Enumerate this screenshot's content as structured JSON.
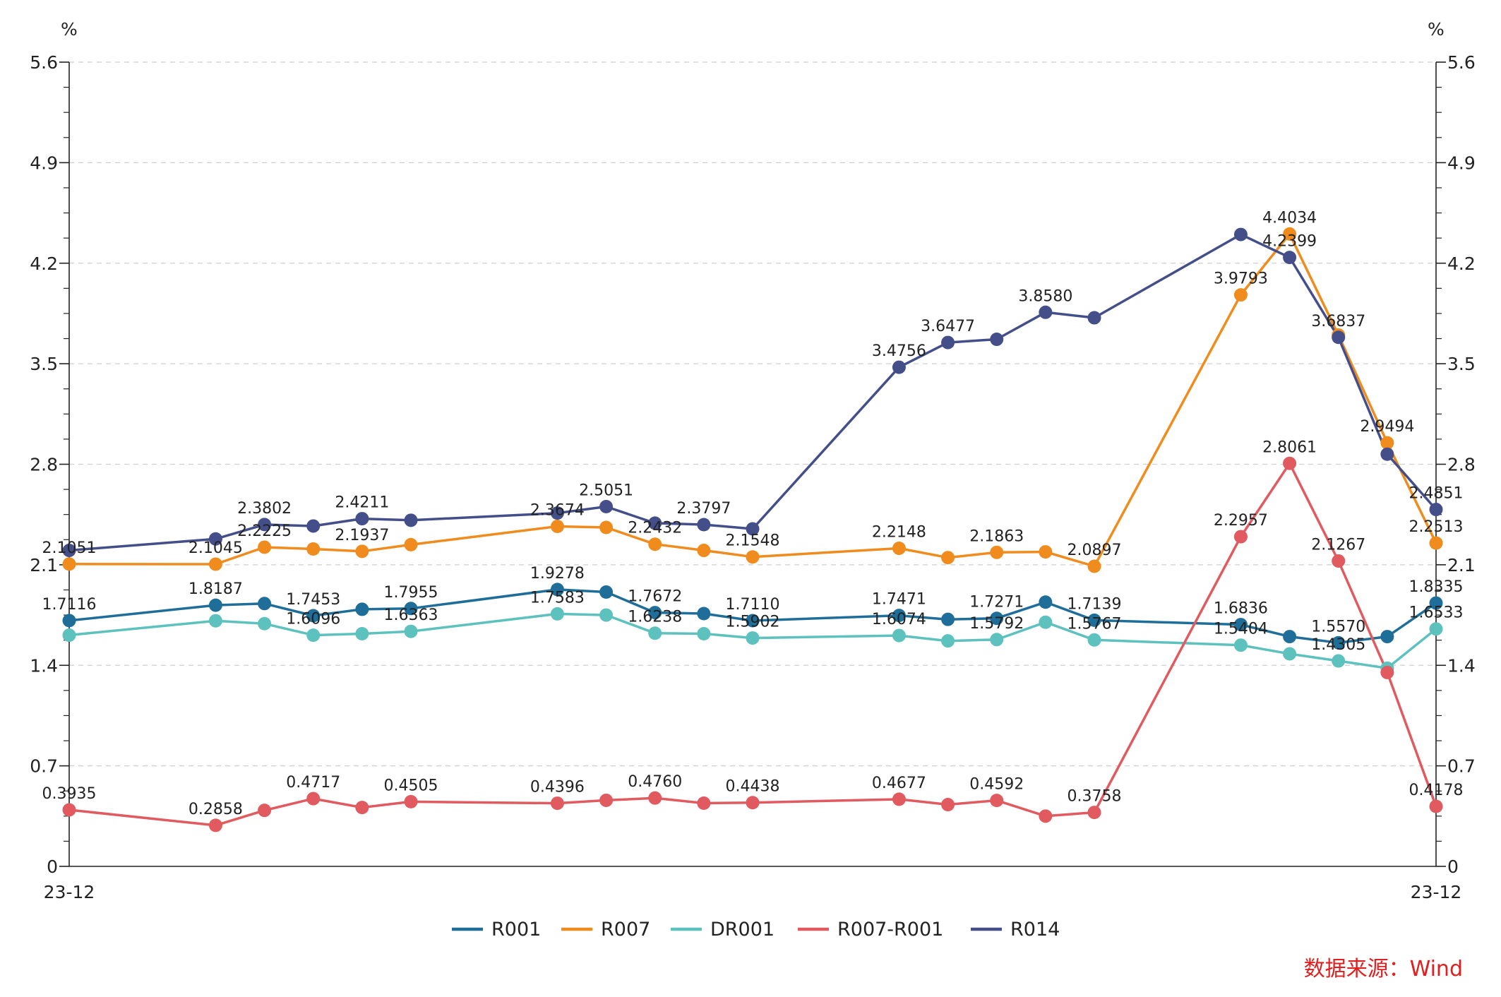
{
  "chart_data": {
    "type": "line",
    "y_unit_left": "%",
    "y_unit_right": "%",
    "ylim": [
      0,
      5.6
    ],
    "yticks": [
      "0",
      "0.7",
      "1.4",
      "2.1",
      "2.8",
      "3.5",
      "4.2",
      "4.9",
      "5.6"
    ],
    "x_start_label": "23-12",
    "x_end_label": "23-12",
    "grid": "horizontal-dashed",
    "legend_position": "bottom",
    "x": [
      0,
      3,
      4,
      5,
      6,
      7,
      10,
      11,
      12,
      13,
      14,
      17,
      18,
      19,
      20,
      21,
      24,
      25,
      26,
      27,
      28
    ],
    "series": [
      {
        "name": "R001",
        "color": "#1f6e9a",
        "values": [
          1.7116,
          1.8187,
          1.83,
          1.7453,
          1.79,
          1.7955,
          1.9278,
          1.91,
          1.7672,
          1.76,
          1.711,
          1.7471,
          1.72,
          1.7271,
          1.84,
          1.7139,
          1.6836,
          1.6,
          1.557,
          1.6,
          1.8335
        ],
        "labels": [
          "1.7116",
          "1.8187",
          "",
          "1.7453",
          "",
          "1.7955",
          "1.9278",
          "",
          "1.7672",
          "",
          "1.7110",
          "1.7471",
          "",
          "1.7271",
          "",
          "1.7139",
          "1.6836",
          "",
          "1.5570",
          "",
          "1.8335"
        ]
      },
      {
        "name": "R007",
        "color": "#f08c1e",
        "values": [
          2.1051,
          2.1045,
          2.2225,
          2.21,
          2.1937,
          2.24,
          2.3674,
          2.36,
          2.2432,
          2.2,
          2.1548,
          2.2148,
          2.15,
          2.1863,
          2.19,
          2.0897,
          3.9793,
          4.4034,
          3.7,
          2.9494,
          2.2513
        ],
        "labels": [
          "2.1051",
          "2.1045",
          "2.2225",
          "",
          "2.1937",
          "",
          "2.3674",
          "",
          "2.2432",
          "",
          "2.1548",
          "2.2148",
          "",
          "2.1863",
          "",
          "2.0897",
          "3.9793",
          "4.4034",
          "",
          "2.9494",
          "2.2513"
        ]
      },
      {
        "name": "DR001",
        "color": "#5dc1be",
        "values": [
          1.61,
          1.71,
          1.69,
          1.6096,
          1.62,
          1.6363,
          1.7583,
          1.75,
          1.6238,
          1.62,
          1.5902,
          1.6074,
          1.57,
          1.5792,
          1.7,
          1.5767,
          1.5404,
          1.48,
          1.4305,
          1.38,
          1.6533
        ],
        "labels": [
          "",
          "",
          "",
          "1.6096",
          "",
          "1.6363",
          "1.7583",
          "",
          "1.6238",
          "",
          "1.5902",
          "1.6074",
          "",
          "1.5792",
          "",
          "1.5767",
          "1.5404",
          "",
          "1.4305",
          "",
          "1.6533"
        ]
      },
      {
        "name": "R007-R001",
        "color": "#e05a5f",
        "values": [
          0.3935,
          0.2858,
          0.39,
          0.4717,
          0.41,
          0.4505,
          0.4396,
          0.46,
          0.476,
          0.44,
          0.4438,
          0.4677,
          0.43,
          0.4592,
          0.35,
          0.3758,
          2.2957,
          2.8061,
          2.1267,
          1.35,
          0.4178
        ],
        "labels": [
          "0.3935",
          "0.2858",
          "",
          "0.4717",
          "",
          "0.4505",
          "0.4396",
          "",
          "0.4760",
          "",
          "0.4438",
          "0.4677",
          "",
          "0.4592",
          "",
          "0.3758",
          "2.2957",
          "2.8061",
          "2.1267",
          "",
          "0.4178"
        ]
      },
      {
        "name": "R014",
        "color": "#444f8a",
        "values": [
          2.2,
          2.28,
          2.3802,
          2.37,
          2.4211,
          2.41,
          2.46,
          2.5051,
          2.39,
          2.3797,
          2.35,
          3.4756,
          3.6477,
          3.67,
          3.858,
          3.82,
          4.4,
          4.2399,
          3.6837,
          2.87,
          2.4851
        ],
        "labels": [
          "",
          "",
          "2.3802",
          "",
          "2.4211",
          "",
          "",
          "2.5051",
          "",
          "2.3797",
          "",
          "3.4756",
          "3.6477",
          "",
          "3.8580",
          "",
          "",
          "4.2399",
          "3.6837",
          "",
          "2.4851"
        ]
      }
    ],
    "source": "数据来源：Wind"
  }
}
